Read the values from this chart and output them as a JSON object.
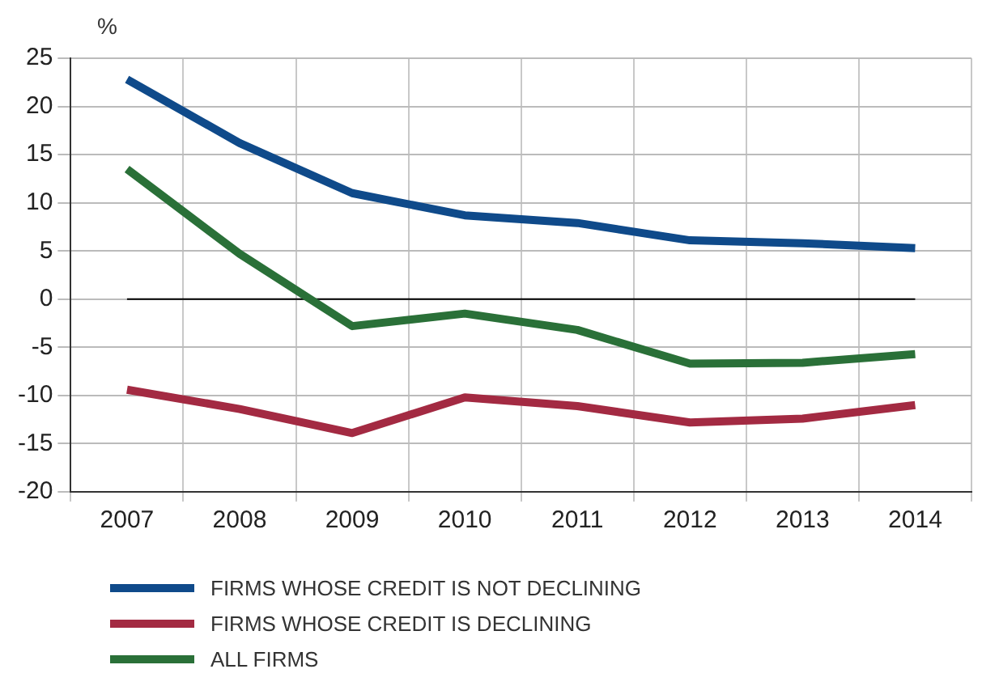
{
  "chart_data": {
    "type": "line",
    "ylabel": "%",
    "categories": [
      "2007",
      "2008",
      "2009",
      "2010",
      "2011",
      "2012",
      "2013",
      "2014"
    ],
    "series": [
      {
        "name": "FIRMS WHOSE CREDIT IS NOT DECLINING",
        "color": "#0f4a8a",
        "values": [
          22.8,
          16.2,
          11,
          8.7,
          7.9,
          6.1,
          5.8,
          5.3
        ]
      },
      {
        "name": "FIRMS WHOSE CREDIT IS DECLINING",
        "color": "#a32a42",
        "values": [
          -9.4,
          -11.4,
          -13.9,
          -10.2,
          -11.1,
          -12.8,
          -12.4,
          -11.0
        ]
      },
      {
        "name": "ALL FIRMS",
        "color": "#2a7038",
        "values": [
          13.5,
          4.7,
          -2.8,
          -1.5,
          -3.2,
          -6.7,
          -6.6,
          -5.7
        ]
      }
    ],
    "ylim": [
      -20,
      25
    ],
    "yticks": [
      -20,
      -15,
      -10,
      -5,
      0,
      5,
      10,
      15,
      20,
      25
    ],
    "ref_lines": [
      {
        "axis": "y",
        "value": 0,
        "color": "#000000"
      }
    ],
    "grid": true,
    "legend": "bottom",
    "marker": "none",
    "line_style": "solid"
  }
}
